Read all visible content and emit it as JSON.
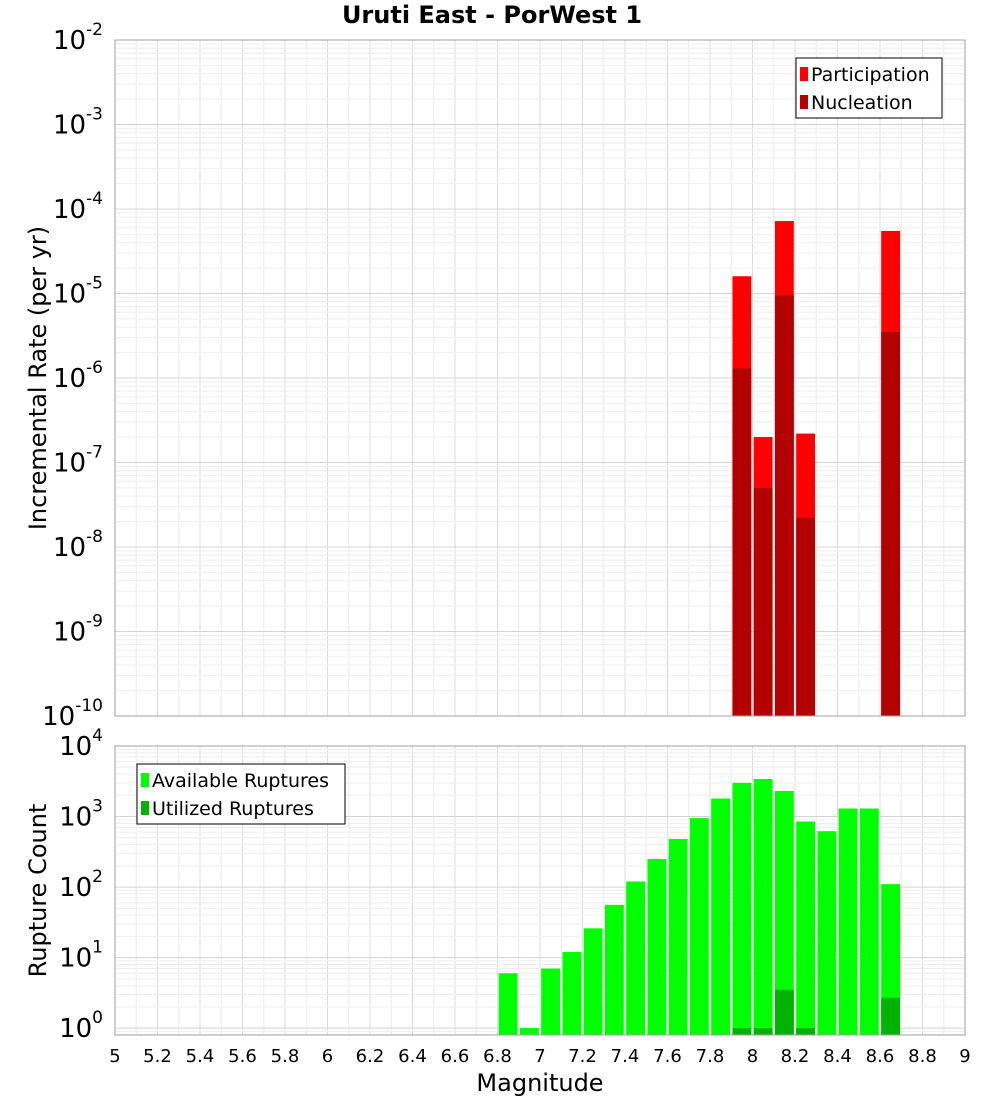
{
  "title": "Uruti East - PorWest 1",
  "chart_data": [
    {
      "type": "bar",
      "panel": "top",
      "ylabel": "Incremental Rate (per yr)",
      "yscale": "log",
      "ylim": [
        1e-10,
        0.01
      ],
      "xlim": [
        5,
        9
      ],
      "y_ticks": [
        {
          "base": "10",
          "exp": "-2",
          "value": 0.01
        },
        {
          "base": "10",
          "exp": "-3",
          "value": 0.001
        },
        {
          "base": "10",
          "exp": "-4",
          "value": 0.0001
        },
        {
          "base": "10",
          "exp": "-5",
          "value": 1e-05
        },
        {
          "base": "10",
          "exp": "-6",
          "value": 1e-06
        },
        {
          "base": "10",
          "exp": "-7",
          "value": 1e-07
        },
        {
          "base": "10",
          "exp": "-8",
          "value": 1e-08
        },
        {
          "base": "10",
          "exp": "-9",
          "value": 1e-09
        },
        {
          "base": "10",
          "exp": "-10",
          "value": 1e-10
        }
      ],
      "legend": {
        "position": "top-right"
      },
      "series": [
        {
          "name": "Participation",
          "color": "#ff0000",
          "points": [
            {
              "x": 7.95,
              "y": 1.6e-05
            },
            {
              "x": 8.05,
              "y": 2e-07
            },
            {
              "x": 8.15,
              "y": 7.2e-05
            },
            {
              "x": 8.25,
              "y": 2.2e-07
            },
            {
              "x": 8.65,
              "y": 5.5e-05
            }
          ]
        },
        {
          "name": "Nucleation",
          "color": "#b30000",
          "points": [
            {
              "x": 7.95,
              "y": 1.3e-06
            },
            {
              "x": 8.05,
              "y": 5e-08
            },
            {
              "x": 8.15,
              "y": 9.5e-06
            },
            {
              "x": 8.25,
              "y": 2.2e-08
            },
            {
              "x": 8.65,
              "y": 3.5e-06
            }
          ]
        }
      ]
    },
    {
      "type": "bar",
      "panel": "bottom",
      "xlabel": "Magnitude",
      "ylabel": "Rupture Count",
      "yscale": "log",
      "ylim": [
        0.8,
        10000
      ],
      "xlim": [
        5,
        9
      ],
      "x_ticks": [
        "5",
        "5.2",
        "5.4",
        "5.6",
        "5.8",
        "6",
        "6.2",
        "6.4",
        "6.6",
        "6.8",
        "7",
        "7.2",
        "7.4",
        "7.6",
        "7.8",
        "8",
        "8.2",
        "8.4",
        "8.6",
        "8.8",
        "9"
      ],
      "y_ticks": [
        {
          "base": "10",
          "exp": "4",
          "value": 10000
        },
        {
          "base": "10",
          "exp": "3",
          "value": 1000
        },
        {
          "base": "10",
          "exp": "2",
          "value": 100
        },
        {
          "base": "10",
          "exp": "1",
          "value": 10
        },
        {
          "base": "10",
          "exp": "0",
          "value": 1
        }
      ],
      "legend": {
        "position": "top-left"
      },
      "series": [
        {
          "name": "Available Ruptures",
          "color": "#00ff00",
          "points": [
            {
              "x": 6.85,
              "y": 6
            },
            {
              "x": 6.95,
              "y": 1
            },
            {
              "x": 7.05,
              "y": 7
            },
            {
              "x": 7.15,
              "y": 12
            },
            {
              "x": 7.25,
              "y": 26
            },
            {
              "x": 7.35,
              "y": 56
            },
            {
              "x": 7.45,
              "y": 120
            },
            {
              "x": 7.55,
              "y": 250
            },
            {
              "x": 7.65,
              "y": 480
            },
            {
              "x": 7.75,
              "y": 950
            },
            {
              "x": 7.85,
              "y": 1800
            },
            {
              "x": 7.95,
              "y": 3000
            },
            {
              "x": 8.05,
              "y": 3400
            },
            {
              "x": 8.15,
              "y": 2300
            },
            {
              "x": 8.25,
              "y": 850
            },
            {
              "x": 8.35,
              "y": 620
            },
            {
              "x": 8.45,
              "y": 1300
            },
            {
              "x": 8.55,
              "y": 1300
            },
            {
              "x": 8.65,
              "y": 110
            }
          ]
        },
        {
          "name": "Utilized Ruptures",
          "color": "#00b300",
          "points": [
            {
              "x": 7.95,
              "y": 1
            },
            {
              "x": 8.05,
              "y": 1
            },
            {
              "x": 8.15,
              "y": 3.5
            },
            {
              "x": 8.25,
              "y": 1
            },
            {
              "x": 8.65,
              "y": 2.7
            }
          ]
        }
      ]
    }
  ]
}
